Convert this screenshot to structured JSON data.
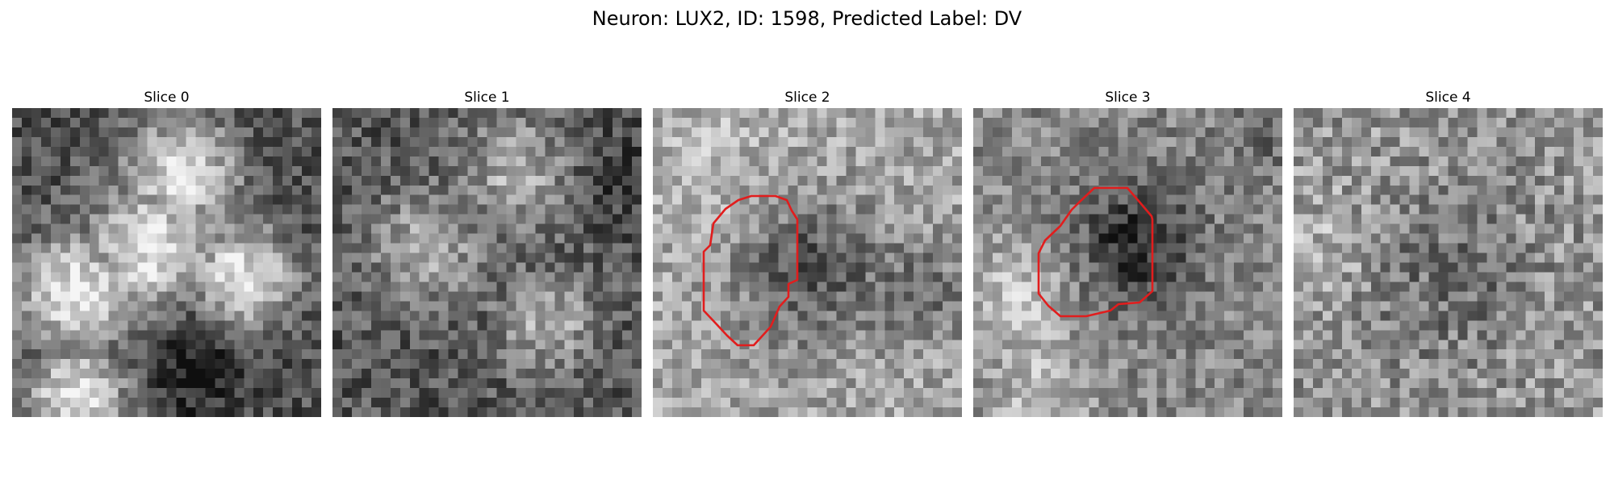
{
  "figure": {
    "title": "Neuron: LUX2, ID: 1598, Predicted Label: DV"
  },
  "slices": [
    {
      "label": "Slice 0",
      "has_roi": false
    },
    {
      "label": "Slice 1",
      "has_roi": false
    },
    {
      "label": "Slice 2",
      "has_roi": true
    },
    {
      "label": "Slice 3",
      "has_roi": true
    },
    {
      "label": "Slice 4",
      "has_roi": false
    }
  ],
  "colors": {
    "roi_outline": "#e11d1d",
    "background": "#ffffff"
  }
}
